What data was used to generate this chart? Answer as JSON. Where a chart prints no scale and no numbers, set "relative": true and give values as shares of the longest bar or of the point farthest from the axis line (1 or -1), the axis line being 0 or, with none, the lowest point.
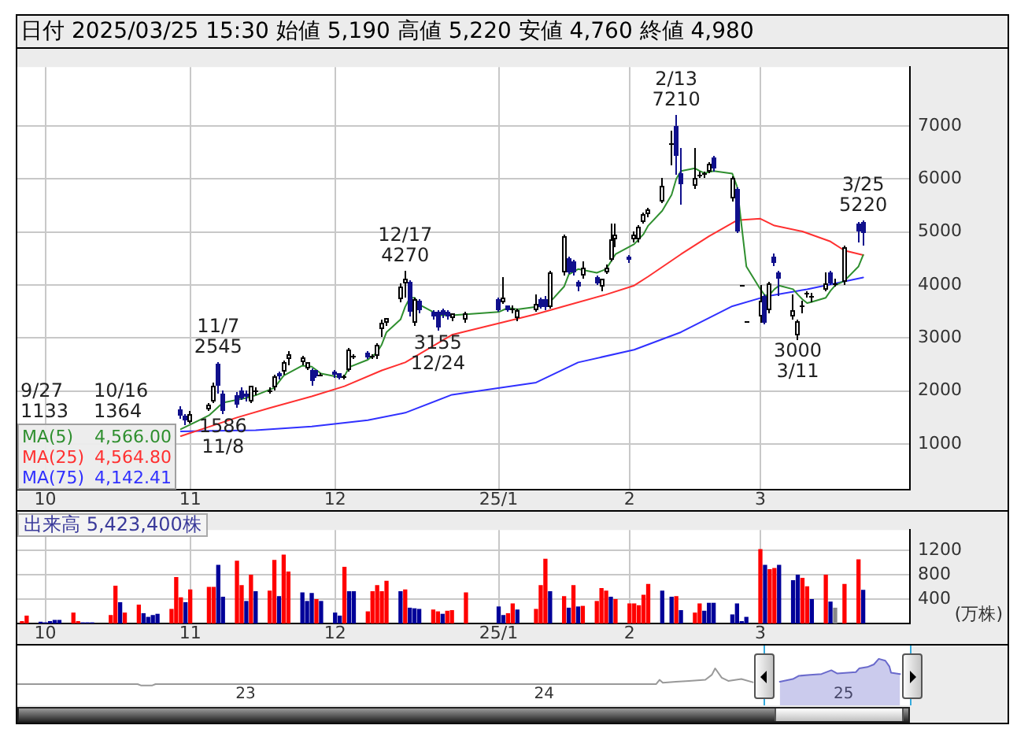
{
  "chart_data": [
    {
      "type": "candlestick",
      "title": "日付 2025/03/25 15:30 始値 5,190 高値 5,220 安値 4,760 終値 4,980",
      "x": [
        "2024-10-30",
        "2024-10-31",
        "2024-11-01",
        "2024-11-05",
        "2024-11-06",
        "2024-11-07",
        "2024-11-08",
        "2024-11-11",
        "2024-11-12",
        "2024-11-13",
        "2024-11-14",
        "2024-11-15",
        "2024-11-18",
        "2024-11-19",
        "2024-11-20",
        "2024-11-21",
        "2024-11-22",
        "2024-11-25",
        "2024-11-26",
        "2024-11-27",
        "2024-11-28",
        "2024-11-29",
        "2024-12-02",
        "2024-12-03",
        "2024-12-04",
        "2024-12-05",
        "2024-12-06",
        "2024-12-09",
        "2024-12-10",
        "2024-12-11",
        "2024-12-12",
        "2024-12-13",
        "2024-12-16",
        "2024-12-17",
        "2024-12-18",
        "2024-12-19",
        "2024-12-20",
        "2024-12-23",
        "2024-12-24",
        "2024-12-25",
        "2024-12-26",
        "2024-12-27",
        "2024-12-30",
        "2025-01-06",
        "2025-01-07",
        "2025-01-08",
        "2025-01-09",
        "2025-01-10",
        "2025-01-14",
        "2025-01-15",
        "2025-01-16",
        "2025-01-17",
        "2025-01-20",
        "2025-01-21",
        "2025-01-22",
        "2025-01-23",
        "2025-01-24",
        "2025-01-27",
        "2025-01-28",
        "2025-01-29",
        "2025-01-30",
        "2025-01-31",
        "2025-02-03",
        "2025-02-04",
        "2025-02-05",
        "2025-02-06",
        "2025-02-07",
        "2025-02-10",
        "2025-02-12",
        "2025-02-13",
        "2025-02-14",
        "2025-02-17",
        "2025-02-18",
        "2025-02-19",
        "2025-02-20",
        "2025-02-21",
        "2025-02-25",
        "2025-02-26",
        "2025-02-27",
        "2025-02-28",
        "2025-03-03",
        "2025-03-04",
        "2025-03-05",
        "2025-03-06",
        "2025-03-07",
        "2025-03-10",
        "2025-03-11",
        "2025-03-12",
        "2025-03-13",
        "2025-03-14",
        "2025-03-17",
        "2025-03-18",
        "2025-03-19",
        "2025-03-21",
        "2025-03-24",
        "2025-03-25"
      ],
      "ohlc": [
        [
          1650,
          1700,
          1500,
          1540
        ],
        [
          1540,
          1570,
          1400,
          1440
        ],
        [
          1420,
          1620,
          1410,
          1580
        ],
        [
          1650,
          1760,
          1640,
          1740
        ],
        [
          1810,
          2150,
          1800,
          2100
        ],
        [
          2530,
          2545,
          1990,
          2100
        ],
        [
          1960,
          2000,
          1586,
          1620
        ],
        [
          1920,
          1990,
          1700,
          1730
        ],
        [
          2010,
          2060,
          1850,
          1870
        ],
        [
          1960,
          2000,
          1820,
          1900
        ],
        [
          1810,
          2110,
          1790,
          2090
        ],
        [
          2000,
          2060,
          1960,
          2000
        ],
        [
          2020,
          2060,
          1990,
          2020
        ],
        [
          2060,
          2320,
          2040,
          2290
        ],
        [
          2340,
          2360,
          2250,
          2280
        ],
        [
          2370,
          2580,
          2350,
          2550
        ],
        [
          2610,
          2760,
          2530,
          2700
        ],
        [
          2540,
          2650,
          2530,
          2630
        ],
        [
          2440,
          2560,
          2420,
          2540
        ],
        [
          2410,
          2430,
          2120,
          2180
        ],
        [
          2390,
          2400,
          2270,
          2290
        ],
        [
          2320,
          2350,
          2300,
          2320
        ],
        [
          2380,
          2400,
          2280,
          2300
        ],
        [
          2330,
          2340,
          2250,
          2260
        ],
        [
          2270,
          2300,
          2250,
          2270
        ],
        [
          2400,
          2800,
          2390,
          2780
        ],
        [
          2660,
          2700,
          2640,
          2660
        ],
        [
          2730,
          2760,
          2620,
          2640
        ],
        [
          2650,
          2680,
          2640,
          2650
        ],
        [
          2660,
          2900,
          2640,
          2870
        ],
        [
          3160,
          3350,
          3060,
          3300
        ],
        [
          3290,
          3390,
          3270,
          3380
        ],
        [
          3730,
          4020,
          3700,
          3980
        ],
        [
          4020,
          4270,
          3780,
          4110
        ],
        [
          4060,
          4100,
          3450,
          3490
        ],
        [
          3280,
          3760,
          3250,
          3730
        ],
        [
          3700,
          3720,
          3500,
          3540
        ],
        [
          3490,
          3520,
          3380,
          3400
        ],
        [
          3490,
          3520,
          3155,
          3210
        ],
        [
          3540,
          3560,
          3420,
          3440
        ],
        [
          3490,
          3520,
          3380,
          3400
        ],
        [
          3370,
          3480,
          3350,
          3460
        ],
        [
          3350,
          3490,
          3330,
          3470
        ],
        [
          3730,
          3760,
          3520,
          3540
        ],
        [
          3670,
          4160,
          3660,
          3760
        ],
        [
          3600,
          3620,
          3520,
          3540
        ],
        [
          3550,
          3600,
          3490,
          3550
        ],
        [
          3380,
          3560,
          3350,
          3540
        ],
        [
          3540,
          3820,
          3520,
          3630
        ],
        [
          3730,
          3750,
          3570,
          3590
        ],
        [
          3730,
          3780,
          3560,
          3590
        ],
        [
          3590,
          4280,
          3570,
          4250
        ],
        [
          4230,
          4950,
          4200,
          4910
        ],
        [
          4510,
          4540,
          4230,
          4250
        ],
        [
          4460,
          4480,
          4220,
          4250
        ],
        [
          4060,
          4080,
          3900,
          3970
        ],
        [
          4180,
          4440,
          4150,
          4340
        ],
        [
          4160,
          4180,
          4020,
          4040
        ],
        [
          3970,
          4130,
          3900,
          4110
        ],
        [
          4250,
          4400,
          4230,
          4340
        ],
        [
          4490,
          5150,
          4470,
          4870
        ],
        [
          4860,
          5150,
          4730,
          4950
        ],
        [
          4540,
          4560,
          4450,
          4490
        ],
        [
          4870,
          5000,
          4840,
          4960
        ],
        [
          4870,
          5130,
          4840,
          5100
        ],
        [
          5200,
          5380,
          5180,
          5340
        ],
        [
          5340,
          5470,
          5320,
          5440
        ],
        [
          5580,
          6030,
          5560,
          5880
        ],
        [
          6670,
          6900,
          6290,
          6670
        ],
        [
          7000,
          7210,
          6100,
          6430
        ],
        [
          6100,
          6580,
          5530,
          5910
        ],
        [
          5860,
          6580,
          5840,
          6030
        ],
        [
          6090,
          6130,
          6050,
          6090
        ],
        [
          6110,
          6150,
          6040,
          6110
        ],
        [
          6150,
          6330,
          6130,
          6290
        ],
        [
          6400,
          6430,
          6180,
          6200
        ],
        [
          5630,
          6060,
          5600,
          6010
        ],
        [
          5820,
          5840,
          5000,
          5010
        ],
        [
          4010,
          4010,
          4010,
          4010
        ],
        [
          3310,
          3310,
          3310,
          3310
        ],
        [
          3400,
          4010,
          3310,
          3700
        ],
        [
          3800,
          3830,
          3290,
          3300
        ],
        [
          3540,
          4060,
          3500,
          4040
        ],
        [
          4540,
          4600,
          4400,
          4420
        ],
        [
          4250,
          4280,
          3820,
          4110
        ],
        [
          3400,
          3820,
          3380,
          3540
        ],
        [
          3060,
          3350,
          3000,
          3320
        ],
        [
          3600,
          3700,
          3500,
          3600
        ],
        [
          3840,
          3880,
          3780,
          3840
        ],
        [
          3800,
          3840,
          3700,
          3800
        ],
        [
          3920,
          4250,
          3900,
          4040
        ],
        [
          4250,
          4270,
          4020,
          4040
        ],
        [
          4040,
          4110,
          4000,
          4040
        ],
        [
          4060,
          4740,
          4040,
          4720
        ],
        [
          5150,
          5190,
          4820,
          5010
        ],
        [
          5190,
          5220,
          4760,
          4980
        ]
      ],
      "colors": [
        "#10108c",
        "#10108c",
        "#ffffff",
        "#ffffff",
        "#ffffff",
        "#10108c",
        "#10108c",
        "#10108c",
        "#10108c",
        "#10108c",
        "#ffffff",
        "#000000",
        "#000000",
        "#ffffff",
        "#10108c",
        "#ffffff",
        "#ffffff",
        "#ffffff",
        "#ffffff",
        "#10108c",
        "#10108c",
        "#000000",
        "#10108c",
        "#10108c",
        "#000000",
        "#ffffff",
        "#000000",
        "#10108c",
        "#000000",
        "#ffffff",
        "#ffffff",
        "#ffffff",
        "#ffffff",
        "#ffffff",
        "#10108c",
        "#ffffff",
        "#10108c",
        "#10108c",
        "#10108c",
        "#10108c",
        "#10108c",
        "#ffffff",
        "#ffffff",
        "#10108c",
        "#ffffff",
        "#10108c",
        "#000000",
        "#ffffff",
        "#ffffff",
        "#10108c",
        "#10108c",
        "#ffffff",
        "#ffffff",
        "#10108c",
        "#10108c",
        "#10108c",
        "#ffffff",
        "#10108c",
        "#ffffff",
        "#ffffff",
        "#ffffff",
        "#ffffff",
        "#10108c",
        "#ffffff",
        "#ffffff",
        "#ffffff",
        "#ffffff",
        "#ffffff",
        "#000000",
        "#10108c",
        "#10108c",
        "#ffffff",
        "#000000",
        "#000000",
        "#ffffff",
        "#10108c",
        "#ffffff",
        "#10108c",
        "#000000",
        "#000000",
        "#ffffff",
        "#10108c",
        "#ffffff",
        "#10108c",
        "#10108c",
        "#ffffff",
        "#ffffff",
        "#000000",
        "#000000",
        "#000000",
        "#ffffff",
        "#10108c",
        "#000000",
        "#ffffff",
        "#10108c",
        "#10108c"
      ],
      "series": [
        {
          "name": "MA(5) 4,566.00",
          "type": "line",
          "color": "#2f8f2f",
          "x": [
            "2024-10-30",
            "2024-11-05",
            "2024-11-08",
            "2024-11-13",
            "2024-11-15",
            "2024-11-19",
            "2024-11-21",
            "2024-11-25",
            "2024-11-27",
            "2024-11-29",
            "2024-12-03",
            "2024-12-04",
            "2024-12-05",
            "2024-12-09",
            "2024-12-11",
            "2024-12-12",
            "2024-12-13",
            "2024-12-16",
            "2024-12-17",
            "2024-12-18",
            "2024-12-19",
            "2024-12-20",
            "2024-12-23",
            "2024-12-24",
            "2024-12-25",
            "2024-12-27",
            "2025-01-06",
            "2025-01-08",
            "2025-01-10",
            "2025-01-15",
            "2025-01-16",
            "2025-01-17",
            "2025-01-20",
            "2025-01-21",
            "2025-01-23",
            "2025-01-27",
            "2025-01-29",
            "2025-01-30",
            "2025-01-31",
            "2025-02-04",
            "2025-02-06",
            "2025-02-07",
            "2025-02-10",
            "2025-02-12",
            "2025-02-13",
            "2025-02-14",
            "2025-02-17",
            "2025-02-18",
            "2025-02-19",
            "2025-02-20",
            "2025-02-21",
            "2025-02-25",
            "2025-02-26",
            "2025-02-27",
            "2025-02-28",
            "2025-03-03",
            "2025-03-04",
            "2025-03-05",
            "2025-03-06",
            "2025-03-07",
            "2025-03-10",
            "2025-03-11",
            "2025-03-12",
            "2025-03-13",
            "2025-03-14",
            "2025-03-17",
            "2025-03-18",
            "2025-03-19",
            "2025-03-21",
            "2025-03-24",
            "2025-03-25"
          ],
          "values": [
            1280,
            1540,
            1780,
            1870,
            1920,
            2060,
            2290,
            2480,
            2460,
            2330,
            2260,
            2280,
            2450,
            2590,
            2730,
            2880,
            3110,
            3350,
            3590,
            3760,
            3760,
            3630,
            3490,
            3430,
            3430,
            3430,
            3490,
            3570,
            3540,
            3600,
            3600,
            3680,
            3970,
            4200,
            4300,
            4230,
            4300,
            4440,
            4580,
            4770,
            4960,
            5120,
            5400,
            5700,
            6000,
            6150,
            6200,
            6150,
            6110,
            6130,
            6150,
            6100,
            5860,
            5100,
            4350,
            3920,
            3800,
            3820,
            3920,
            3990,
            3920,
            3820,
            3730,
            3660,
            3680,
            3760,
            3890,
            3990,
            4080,
            4350,
            4566
          ]
        },
        {
          "name": "MA(25) 4,564.80",
          "type": "line",
          "color": "#ff3030",
          "x": [
            "2024-10-30",
            "2024-11-11",
            "2024-11-18",
            "2024-11-27",
            "2024-12-04",
            "2024-12-12",
            "2024-12-17",
            "2024-12-27",
            "2025-01-07",
            "2025-01-14",
            "2025-01-20",
            "2025-01-29",
            "2025-02-04",
            "2025-02-07",
            "2025-02-14",
            "2025-02-20",
            "2025-02-26",
            "2025-03-03",
            "2025-03-06",
            "2025-03-12",
            "2025-03-18",
            "2025-03-21",
            "2025-03-25"
          ],
          "values": [
            1150,
            1500,
            1680,
            1900,
            2090,
            2390,
            2540,
            3060,
            3300,
            3450,
            3600,
            3820,
            3990,
            4160,
            4580,
            4920,
            5220,
            5250,
            5120,
            5010,
            4820,
            4650,
            4564.8
          ]
        },
        {
          "name": "MA(75) 4,142.41",
          "type": "line",
          "color": "#3030ff",
          "x": [
            "2024-10-30",
            "2024-11-15",
            "2024-11-27",
            "2024-12-09",
            "2024-12-17",
            "2024-12-27",
            "2025-01-14",
            "2025-01-23",
            "2025-02-04",
            "2025-02-14",
            "2025-02-25",
            "2025-03-04",
            "2025-03-13",
            "2025-03-25"
          ],
          "values": [
            1240,
            1260,
            1330,
            1450,
            1590,
            1930,
            2160,
            2540,
            2780,
            3110,
            3600,
            3780,
            3920,
            4142.41
          ]
        }
      ],
      "xlim": [
        "2024-09-25",
        "2025-04-04"
      ],
      "xticks": [
        {
          "value": "2024-10-01",
          "label": "10"
        },
        {
          "value": "2024-11-01",
          "label": "11"
        },
        {
          "value": "2024-12-02",
          "label": "12"
        },
        {
          "value": "2025-01-06",
          "label": "25/1"
        },
        {
          "value": "2025-02-03",
          "label": "2"
        },
        {
          "value": "2025-03-03",
          "label": "3"
        }
      ],
      "ylim": [
        140,
        8110
      ],
      "yticks": [
        1000,
        2000,
        3000,
        4000,
        5000,
        6000,
        7000
      ],
      "grid": true,
      "legend": "bottom left",
      "annotations": [
        "9/27\n1133",
        "10/16\n1364",
        {
          "text": "11/7\n2545",
          "x": "2024-11-07",
          "y": 2545
        },
        {
          "text": "1586\n11/8",
          "x": "2024-11-08",
          "y": 1586
        },
        {
          "text": "12/17\n4270",
          "x": "2024-12-17",
          "y": 4270
        },
        {
          "text": "3155\n12/24",
          "x": "2024-12-24",
          "y": 3155
        },
        {
          "text": "2/13\n7210",
          "x": "2025-02-13",
          "y": 7210
        },
        {
          "text": "3000\n3/11",
          "x": "2025-03-11",
          "y": 3000
        },
        {
          "text": "3/25\n5220",
          "x": "2025-03-25",
          "y": 5220
        }
      ]
    },
    {
      "type": "bar",
      "title": "出来高 5,423,400株",
      "ylabel": "(万株)",
      "x": [
        "2024-09-26",
        "2024-09-27",
        "2024-09-30",
        "2024-10-01",
        "2024-10-02",
        "2024-10-03",
        "2024-10-04",
        "2024-10-07",
        "2024-10-08",
        "2024-10-09",
        "2024-10-10",
        "2024-10-11",
        "2024-10-15",
        "2024-10-16",
        "2024-10-17",
        "2024-10-18",
        "2024-10-21",
        "2024-10-22",
        "2024-10-23",
        "2024-10-24",
        "2024-10-25",
        "2024-10-28",
        "2024-10-29",
        "2024-10-30",
        "2024-10-31",
        "2024-11-01",
        "2024-11-05",
        "2024-11-06",
        "2024-11-07",
        "2024-11-08",
        "2024-11-11",
        "2024-11-12",
        "2024-11-13",
        "2024-11-14",
        "2024-11-15",
        "2024-11-18",
        "2024-11-19",
        "2024-11-20",
        "2024-11-21",
        "2024-11-22",
        "2024-11-25",
        "2024-11-26",
        "2024-11-27",
        "2024-11-28",
        "2024-11-29",
        "2024-12-02",
        "2024-12-03",
        "2024-12-04",
        "2024-12-05",
        "2024-12-06",
        "2024-12-09",
        "2024-12-10",
        "2024-12-11",
        "2024-12-12",
        "2024-12-13",
        "2024-12-16",
        "2024-12-17",
        "2024-12-18",
        "2024-12-19",
        "2024-12-20",
        "2024-12-23",
        "2024-12-24",
        "2024-12-25",
        "2024-12-26",
        "2024-12-27",
        "2024-12-30",
        "2025-01-06",
        "2025-01-07",
        "2025-01-08",
        "2025-01-09",
        "2025-01-10",
        "2025-01-14",
        "2025-01-15",
        "2025-01-16",
        "2025-01-17",
        "2025-01-20",
        "2025-01-21",
        "2025-01-22",
        "2025-01-23",
        "2025-01-24",
        "2025-01-27",
        "2025-01-28",
        "2025-01-29",
        "2025-01-30",
        "2025-01-31",
        "2025-02-03",
        "2025-02-04",
        "2025-02-05",
        "2025-02-06",
        "2025-02-07",
        "2025-02-10",
        "2025-02-12",
        "2025-02-13",
        "2025-02-14",
        "2025-02-17",
        "2025-02-18",
        "2025-02-19",
        "2025-02-20",
        "2025-02-21",
        "2025-02-25",
        "2025-02-26",
        "2025-02-27",
        "2025-02-28",
        "2025-03-03",
        "2025-03-04",
        "2025-03-05",
        "2025-03-06",
        "2025-03-07",
        "2025-03-10",
        "2025-03-11",
        "2025-03-12",
        "2025-03-13",
        "2025-03-14",
        "2025-03-17",
        "2025-03-18",
        "2025-03-19",
        "2025-03-21",
        "2025-03-24",
        "2025-03-25"
      ],
      "values": [
        30,
        120,
        20,
        10,
        30,
        50,
        50,
        170,
        30,
        10,
        10,
        10,
        130,
        610,
        340,
        170,
        300,
        160,
        100,
        130,
        150,
        230,
        750,
        420,
        340,
        550,
        590,
        590,
        950,
        430,
        1020,
        620,
        360,
        790,
        520,
        530,
        1030,
        440,
        1120,
        840,
        500,
        360,
        490,
        390,
        360,
        170,
        120,
        920,
        520,
        520,
        190,
        520,
        620,
        520,
        690,
        520,
        550,
        250,
        240,
        230,
        220,
        190,
        150,
        200,
        210,
        500,
        270,
        130,
        160,
        320,
        220,
        230,
        620,
        1050,
        520,
        440,
        250,
        620,
        270,
        280,
        360,
        570,
        530,
        430,
        390,
        320,
        320,
        290,
        460,
        640,
        530,
        430,
        440,
        210,
        170,
        320,
        200,
        330,
        330,
        140,
        320,
        30,
        100,
        1210,
        950,
        880,
        900,
        950,
        700,
        790,
        740,
        600,
        390,
        790,
        350,
        250,
        640,
        1040,
        542.34
      ],
      "colors": [
        "#ff0000",
        "#ff0000",
        "#000099",
        "#000099",
        "#000099",
        "#000099",
        "#000099",
        "#ff0000",
        "#ff0000",
        "#000099",
        "#000099",
        "#000099",
        "#ff0000",
        "#ff0000",
        "#000099",
        "#ff0000",
        "#ff0000",
        "#000099",
        "#000099",
        "#000099",
        "#000099",
        "#ff0000",
        "#ff0000",
        "#ff0000",
        "#000099",
        "#ff0000",
        "#ff0000",
        "#ff0000",
        "#000099",
        "#000099",
        "#ff0000",
        "#ff0000",
        "#000099",
        "#ff0000",
        "#000099",
        "#ff0000",
        "#ff0000",
        "#000099",
        "#ff0000",
        "#ff0000",
        "#000099",
        "#000099",
        "#000099",
        "#ff0000",
        "#000099",
        "#000099",
        "#000099",
        "#ff0000",
        "#000099",
        "#000099",
        "#ff0000",
        "#ff0000",
        "#ff0000",
        "#ff0000",
        "#ff0000",
        "#000099",
        "#ff0000",
        "#000099",
        "#000099",
        "#000099",
        "#ff0000",
        "#ff0000",
        "#000099",
        "#ff0000",
        "#ff0000",
        "#ff0000",
        "#000099",
        "#000099",
        "#ff0000",
        "#ff0000",
        "#000099",
        "#ff0000",
        "#ff0000",
        "#ff0000",
        "#000099",
        "#ff0000",
        "#000099",
        "#ff0000",
        "#000099",
        "#ff0000",
        "#ff0000",
        "#ff0000",
        "#ff0000",
        "#000099",
        "#ff0000",
        "#ff0000",
        "#ff0000",
        "#ff0000",
        "#ff0000",
        "#ff0000",
        "#000099",
        "#000099",
        "#ff0000",
        "#000099",
        "#ff0000",
        "#ff0000",
        "#000099",
        "#000099",
        "#000099",
        "#000099",
        "#000099",
        "#000099",
        "#000099",
        "#ff0000",
        "#000099",
        "#ff0000",
        "#ff0000",
        "#000099",
        "#000099",
        "#000099",
        "#ff0000",
        "#ff0000",
        "#000099",
        "#ff0000",
        "#000099",
        "#888888",
        "#ff0000",
        "#ff0000",
        "#000099"
      ],
      "xlim": [
        "2024-09-25",
        "2025-04-04"
      ],
      "xticks": [
        {
          "value": "2024-10-01",
          "label": "10"
        },
        {
          "value": "2024-11-01",
          "label": "11"
        },
        {
          "value": "2024-12-02",
          "label": "12"
        },
        {
          "value": "2025-01-06",
          "label": "25/1"
        },
        {
          "value": "2025-02-03",
          "label": "2"
        },
        {
          "value": "2025-03-03",
          "label": "3"
        }
      ],
      "ylim": [
        0,
        1530
      ],
      "yticks": [
        400,
        800,
        1200
      ],
      "grid": true
    },
    {
      "type": "line",
      "relative": true,
      "series": [
        {
          "color": "#999999",
          "x": [
            "2022-03-28",
            "2022-08-22",
            "2022-08-26",
            "2022-09-09",
            "2022-09-13",
            "2024-05-17",
            "2024-05-21",
            "2024-05-25",
            "2024-06-10",
            "2024-06-26",
            "2024-07-16",
            "2024-07-24",
            "2024-07-28",
            "2024-08-05",
            "2024-08-13",
            "2024-08-29",
            "2024-09-12"
          ],
          "values": [
            0.05,
            0.05,
            0,
            0,
            0.05,
            0.05,
            0.21,
            0.1,
            0.14,
            0.17,
            0.21,
            0.4,
            0.64,
            0.29,
            0.17,
            0.24,
            0.12
          ]
        },
        {
          "type": "area",
          "color": "#6a6acc",
          "x": [
            "2024-10-15",
            "2024-10-31",
            "2024-11-07",
            "2024-11-21",
            "2024-12-05",
            "2024-12-17",
            "2024-12-24",
            "2025-01-16",
            "2025-01-20",
            "2025-01-30",
            "2025-02-07",
            "2025-02-13",
            "2025-02-21",
            "2025-02-26",
            "2025-02-28",
            "2025-03-11"
          ],
          "values": [
            0.14,
            0.24,
            0.36,
            0.4,
            0.43,
            0.57,
            0.45,
            0.5,
            0.64,
            0.69,
            0.79,
            1,
            0.93,
            0.71,
            0.48,
            0.43
          ]
        }
      ],
      "xlim": [
        "2022-03-28",
        "2025-03-25"
      ],
      "xticks": [
        {
          "value": "2023-01-01",
          "label": "23"
        },
        {
          "value": "2024-01-01",
          "label": "24"
        },
        {
          "value": "2025-01-01",
          "label": "25"
        }
      ],
      "ref_lines": [
        {
          "axis": "x",
          "value": "2024-09-26",
          "color": "#33aadd"
        },
        {
          "axis": "x",
          "value": "2025-03-25",
          "color": "#33aadd"
        }
      ]
    }
  ]
}
